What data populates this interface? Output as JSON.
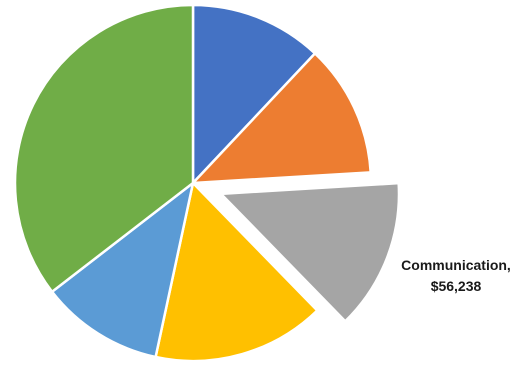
{
  "chart_data": {
    "type": "pie",
    "title": "",
    "slices": [
      {
        "value": 49500,
        "color": "#4472C4"
      },
      {
        "value": 49500,
        "color": "#ED7D31"
      },
      {
        "value": 56238,
        "color": "#A5A5A5",
        "exploded": true,
        "label_name": "Communication,",
        "label_value": "$56,238"
      },
      {
        "value": 64500,
        "color": "#FFC000"
      },
      {
        "value": 46000,
        "color": "#5B9BD5"
      },
      {
        "value": 146000,
        "color": "#70AD47"
      }
    ],
    "start_angle_deg": 0,
    "direction": "clockwise",
    "legend": "none"
  }
}
